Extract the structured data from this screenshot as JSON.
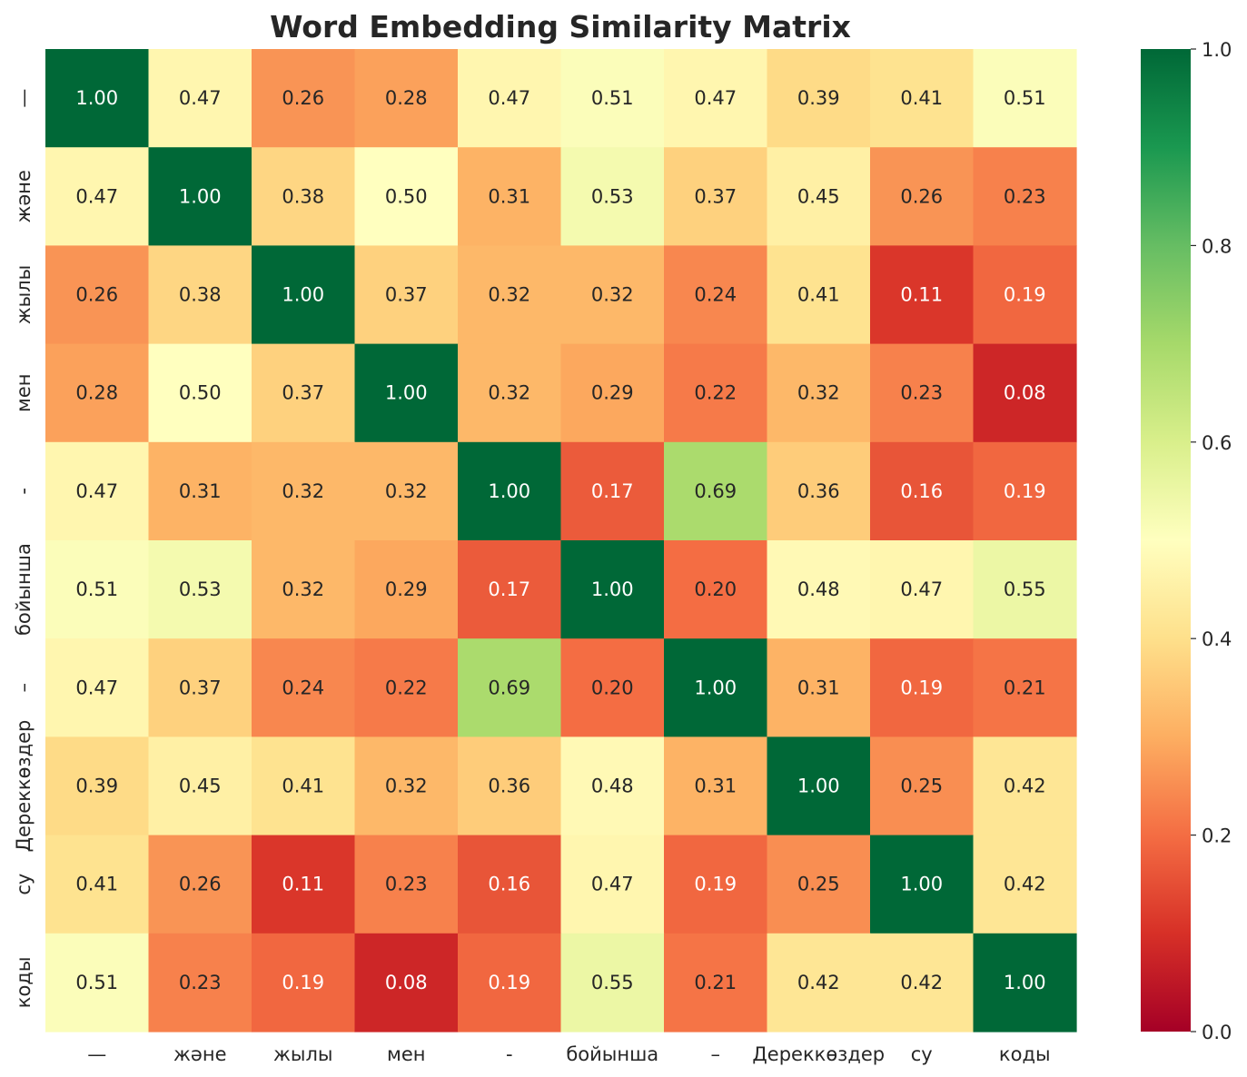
{
  "chart_data": {
    "type": "heatmap",
    "title": "Word Embedding Similarity Matrix",
    "xlabel": "",
    "ylabel": "",
    "labels": [
      "—",
      "және",
      "жылы",
      "мен",
      "-",
      "бойынша",
      "–",
      "Дереккөздер",
      "су",
      "коды"
    ],
    "matrix": [
      [
        1.0,
        0.47,
        0.26,
        0.28,
        0.47,
        0.51,
        0.47,
        0.39,
        0.41,
        0.51
      ],
      [
        0.47,
        1.0,
        0.38,
        0.5,
        0.31,
        0.53,
        0.37,
        0.45,
        0.26,
        0.23
      ],
      [
        0.26,
        0.38,
        1.0,
        0.37,
        0.32,
        0.32,
        0.24,
        0.41,
        0.11,
        0.19
      ],
      [
        0.28,
        0.5,
        0.37,
        1.0,
        0.32,
        0.29,
        0.22,
        0.32,
        0.23,
        0.08
      ],
      [
        0.47,
        0.31,
        0.32,
        0.32,
        1.0,
        0.17,
        0.69,
        0.36,
        0.16,
        0.19
      ],
      [
        0.51,
        0.53,
        0.32,
        0.29,
        0.17,
        1.0,
        0.2,
        0.48,
        0.47,
        0.55
      ],
      [
        0.47,
        0.37,
        0.24,
        0.22,
        0.69,
        0.2,
        1.0,
        0.31,
        0.19,
        0.21
      ],
      [
        0.39,
        0.45,
        0.41,
        0.32,
        0.36,
        0.48,
        0.31,
        1.0,
        0.25,
        0.42
      ],
      [
        0.41,
        0.26,
        0.11,
        0.23,
        0.16,
        0.47,
        0.19,
        0.25,
        1.0,
        0.42
      ],
      [
        0.51,
        0.23,
        0.19,
        0.08,
        0.19,
        0.55,
        0.21,
        0.42,
        0.42,
        1.0
      ]
    ],
    "value_format": "0.00",
    "colormap": "RdYlGn",
    "vmin": 0.0,
    "vmax": 1.0,
    "colorbar_ticks": [
      "0.0",
      "0.2",
      "0.4",
      "0.6",
      "0.8",
      "1.0"
    ],
    "grid": false,
    "legend": "colorbar-right"
  }
}
